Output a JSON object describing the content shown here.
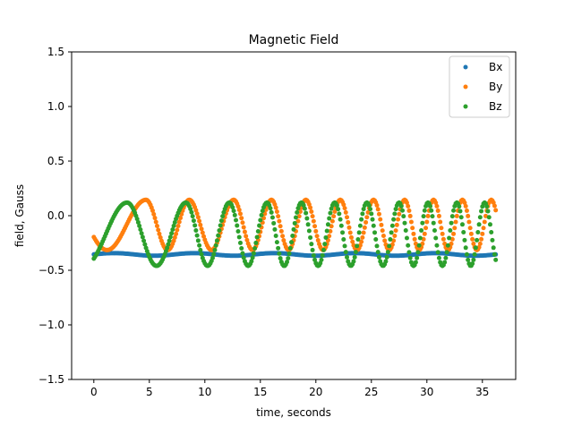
{
  "chart_data": {
    "type": "scatter",
    "title": "Magnetic Field",
    "xlabel": "time, seconds",
    "ylabel": "field, Gauss",
    "xlim": [
      -2,
      38
    ],
    "ylim": [
      -1.5,
      1.5
    ],
    "xticks": [
      0,
      5,
      10,
      15,
      20,
      25,
      30,
      35
    ],
    "yticks": [
      -1.5,
      -1.0,
      -0.5,
      0.0,
      0.5,
      1.0,
      1.5
    ],
    "xtick_labels": [
      "0",
      "5",
      "10",
      "15",
      "20",
      "25",
      "30",
      "35"
    ],
    "ytick_labels": [
      "−1.5",
      "−1.0",
      "−0.5",
      "0.0",
      "0.5",
      "1.0",
      "1.5"
    ],
    "grid": false,
    "legend_position": "top-right",
    "x_range": [
      0,
      36.2
    ],
    "sample_spacing": 0.1,
    "series": [
      {
        "name": "Bx",
        "color": "#1f77b4",
        "model": "offset_sine",
        "offset": -0.355,
        "amplitude": 0.012,
        "cycle_points": [
          [
            0,
            0
          ],
          [
            36.2,
            5
          ]
        ],
        "y_range": [
          -0.38,
          -0.33
        ]
      },
      {
        "name": "By",
        "color": "#ff7f0e",
        "model": "offset_sine",
        "offset": -0.085,
        "amplitude": 0.23,
        "cycle_points": [
          [
            0,
            -0.42
          ],
          [
            4.7,
            0.25
          ],
          [
            8.6,
            1.25
          ],
          [
            12.6,
            2.25
          ],
          [
            16.0,
            3.25
          ],
          [
            19.1,
            4.25
          ],
          [
            22.2,
            5.25
          ],
          [
            25.2,
            6.25
          ],
          [
            28.0,
            7.25
          ],
          [
            30.6,
            8.25
          ],
          [
            33.2,
            9.25
          ],
          [
            35.8,
            10.25
          ],
          [
            36.2,
            10.4
          ]
        ],
        "y_range": [
          -0.32,
          0.15
        ]
      },
      {
        "name": "Bz",
        "color": "#2ca02c",
        "model": "offset_sine",
        "offset": -0.17,
        "amplitude": 0.29,
        "cycle_points": [
          [
            0,
            -0.14
          ],
          [
            3.0,
            0.25
          ],
          [
            8.3,
            1.25
          ],
          [
            12.2,
            2.25
          ],
          [
            15.6,
            3.25
          ],
          [
            18.7,
            4.25
          ],
          [
            21.7,
            5.25
          ],
          [
            24.6,
            6.25
          ],
          [
            27.5,
            7.25
          ],
          [
            30.1,
            8.25
          ],
          [
            32.7,
            9.25
          ],
          [
            35.2,
            10.25
          ],
          [
            36.2,
            10.65
          ]
        ],
        "y_range": [
          -0.46,
          0.12
        ]
      }
    ]
  }
}
